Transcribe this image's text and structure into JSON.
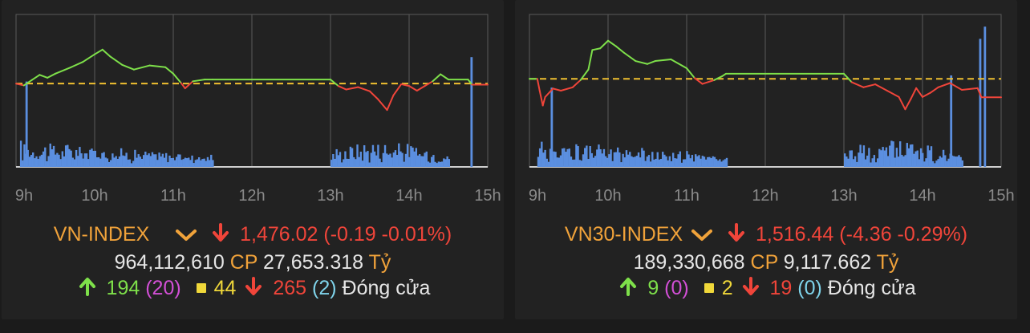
{
  "chart_data": [
    {
      "type": "line",
      "x_ticks": [
        "9h",
        "10h",
        "11h",
        "12h",
        "13h",
        "14h",
        "15h"
      ],
      "reference": 1476.21,
      "ylim": [
        1462,
        1488
      ],
      "series": [
        {
          "values": [
            [
              9.0,
              1476.2
            ],
            [
              9.1,
              1475.9
            ],
            [
              9.2,
              1476.8
            ],
            [
              9.3,
              1477.7
            ],
            [
              9.4,
              1477.2
            ],
            [
              9.5,
              1477.9
            ],
            [
              9.7,
              1479.0
            ],
            [
              9.85,
              1479.9
            ],
            [
              10.0,
              1481.2
            ],
            [
              10.1,
              1482.0
            ],
            [
              10.2,
              1480.8
            ],
            [
              10.35,
              1479.4
            ],
            [
              10.5,
              1478.6
            ],
            [
              10.7,
              1479.3
            ],
            [
              10.9,
              1479.0
            ],
            [
              11.0,
              1477.9
            ],
            [
              11.1,
              1476.3
            ],
            [
              11.15,
              1475.4
            ],
            [
              11.25,
              1476.6
            ],
            [
              11.4,
              1476.9
            ],
            [
              11.5,
              1476.9
            ],
            [
              13.0,
              1476.9
            ],
            [
              13.1,
              1475.8
            ],
            [
              13.2,
              1475.2
            ],
            [
              13.35,
              1475.6
            ],
            [
              13.5,
              1474.9
            ],
            [
              13.6,
              1473.6
            ],
            [
              13.72,
              1471.7
            ],
            [
              13.8,
              1474.2
            ],
            [
              13.9,
              1476.1
            ],
            [
              14.0,
              1475.8
            ],
            [
              14.1,
              1475.0
            ],
            [
              14.2,
              1475.8
            ],
            [
              14.3,
              1476.6
            ],
            [
              14.4,
              1477.8
            ],
            [
              14.5,
              1476.9
            ],
            [
              14.75,
              1476.9
            ],
            [
              14.8,
              1476.02
            ],
            [
              15.0,
              1476.02
            ]
          ]
        }
      ],
      "volume": {
        "segments": [
          [
            9.05,
            11.5
          ],
          [
            13.0,
            14.5
          ]
        ],
        "spikes": [
          [
            9.12,
            28
          ],
          [
            14.78,
            36
          ]
        ]
      },
      "index_name": "VN-INDEX",
      "value": "1,476.02",
      "change": "(-0.19 -0.01%)",
      "volume_text": "964,112,610",
      "cp_label": "CP",
      "turnover": "27,653.318",
      "unit": "Tỷ",
      "advancers": "194",
      "ceiling": "(20)",
      "unchanged": "44",
      "decliners": "265",
      "floor": "(2)",
      "status": "Đóng cửa"
    },
    {
      "type": "line",
      "x_ticks": [
        "9h",
        "10h",
        "11h",
        "12h",
        "13h",
        "14h",
        "15h"
      ],
      "reference": 1520.8,
      "ylim": [
        1500,
        1536
      ],
      "series": [
        {
          "values": [
            [
              9.0,
              1520.8
            ],
            [
              9.1,
              1520.8
            ],
            [
              9.13,
              1518.0
            ],
            [
              9.17,
              1514.5
            ],
            [
              9.2,
              1516.5
            ],
            [
              9.3,
              1518.5
            ],
            [
              9.4,
              1518.0
            ],
            [
              9.55,
              1518.8
            ],
            [
              9.65,
              1520.5
            ],
            [
              9.75,
              1523.0
            ],
            [
              9.8,
              1527.6
            ],
            [
              9.9,
              1528.0
            ],
            [
              10.0,
              1529.8
            ],
            [
              10.1,
              1528.5
            ],
            [
              10.2,
              1527.0
            ],
            [
              10.35,
              1525.0
            ],
            [
              10.5,
              1524.3
            ],
            [
              10.6,
              1525.0
            ],
            [
              10.8,
              1525.4
            ],
            [
              11.0,
              1523.3
            ],
            [
              11.1,
              1521.0
            ],
            [
              11.2,
              1519.6
            ],
            [
              11.35,
              1520.5
            ],
            [
              11.45,
              1521.4
            ],
            [
              11.5,
              1522.0
            ],
            [
              13.0,
              1522.0
            ],
            [
              13.1,
              1520.0
            ],
            [
              13.25,
              1518.8
            ],
            [
              13.4,
              1519.5
            ],
            [
              13.55,
              1518.0
            ],
            [
              13.7,
              1516.5
            ],
            [
              13.78,
              1513.6
            ],
            [
              13.85,
              1516.0
            ],
            [
              13.92,
              1518.6
            ],
            [
              14.0,
              1516.5
            ],
            [
              14.1,
              1517.5
            ],
            [
              14.2,
              1518.8
            ],
            [
              14.35,
              1519.8
            ],
            [
              14.5,
              1518.2
            ],
            [
              14.7,
              1518.6
            ],
            [
              14.75,
              1516.44
            ],
            [
              15.0,
              1516.44
            ]
          ]
        }
      ],
      "volume": {
        "segments": [
          [
            9.1,
            11.5
          ],
          [
            13.0,
            14.5
          ]
        ],
        "spikes": [
          [
            9.27,
            26
          ],
          [
            14.35,
            30
          ],
          [
            14.72,
            42
          ],
          [
            14.78,
            46
          ]
        ]
      },
      "index_name": "VN30-INDEX",
      "value": "1,516.44",
      "change": "(-4.36 -0.29%)",
      "volume_text": "189,330,668",
      "cp_label": "CP",
      "turnover": "9,117.662",
      "unit": "Tỷ",
      "advancers": "9",
      "ceiling": "(0)",
      "unchanged": "2",
      "decliners": "19",
      "floor": "(0)",
      "status": "Đóng cửa"
    }
  ],
  "colors": {
    "up": "#7ee04a",
    "down": "#f0453a",
    "reference": "#f0c030",
    "volume": "#5b8fe0",
    "grid": "#5a5a5a",
    "axis_text": "#8a8a8a",
    "index_name": "#f0a23a"
  },
  "icons": {
    "dropdown": "chevron-down-icon",
    "up": "arrow-up-icon",
    "down": "arrow-down-icon",
    "unchanged": "square-icon"
  }
}
